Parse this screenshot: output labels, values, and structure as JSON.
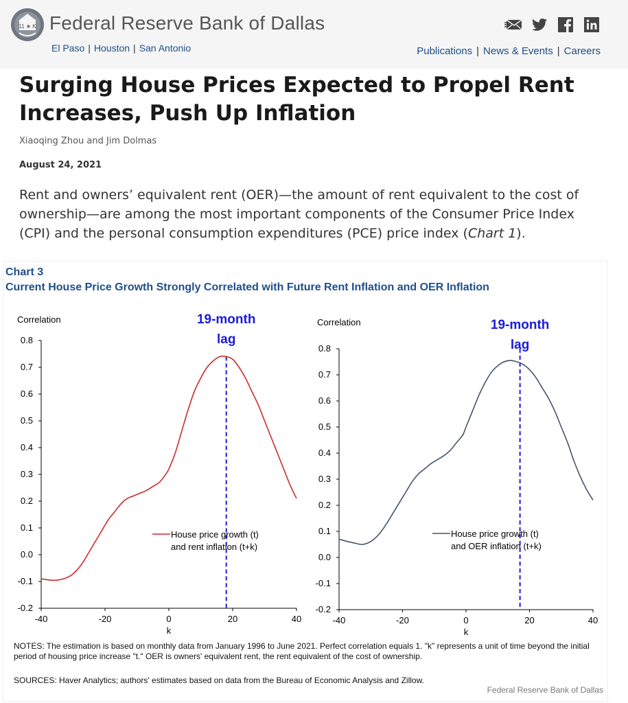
{
  "header": {
    "bank_name": "Federal Reserve Bank of Dallas",
    "cities": [
      "El Paso",
      "Houston",
      "San Antonio"
    ],
    "nav": [
      "Publications",
      "News & Events",
      "Careers"
    ],
    "social_icons": [
      "email-icon",
      "twitter-icon",
      "facebook-icon",
      "linkedin-icon"
    ],
    "seal_text": "11 ★ K"
  },
  "article": {
    "title": "Surging House Prices Expected to Propel Rent Increases, Push Up Inflation",
    "authors": "Xiaoqing Zhou and Jim Dolmas",
    "date": "August 24, 2021",
    "lead_before": "Rent and owners’ equivalent rent (OER)—the amount of rent equivalent to the cost of ownership—are among the most important components of the Consumer Price Index (CPI) and the personal consumption expenditures (PCE) price index (",
    "lead_link": "Chart 1",
    "lead_after": ")."
  },
  "chart_section": {
    "label": "Chart 3",
    "title": "Current House Price Growth Strongly  Correlated with Future Rent Inflation and OER Inflation",
    "notes": "NOTES: The estimation is based on monthly data from January 1996 to June 2021. Perfect correlation equals 1. \"k\" represents a unit of time beyond the initial period of housing price increase \"t.\" OER is owners' equivalent rent, the rent equivalent of the cost of ownership.",
    "sources": "SOURCES: Haver Analytics; authors' estimates based on data from the Bureau of Economic Analysis and Zillow.",
    "credit": "Federal Reserve  Bank of Dallas"
  },
  "chart_data": [
    {
      "type": "line",
      "ylabel": "Correlation",
      "xlabel": "k",
      "xlim": [
        -40,
        40
      ],
      "ylim": [
        -0.2,
        0.8
      ],
      "xticks": [
        -40,
        -20,
        0,
        20,
        40
      ],
      "yticks": [
        0.8,
        0.7,
        0.6,
        0.5,
        0.4,
        0.3,
        0.2,
        0.1,
        0.0,
        -0.1,
        -0.2
      ],
      "ytick_labels": [
        "0.8",
        "0.7",
        "0.6",
        "0.5",
        "0.4",
        "0.3",
        "0.2",
        "0.1",
        "0.0",
        "-0.1",
        "-0.2"
      ],
      "annotation": {
        "line1": "19-month",
        "line2": "lag",
        "k": 18
      },
      "series": [
        {
          "name_line1": "House price growth (t)",
          "name_line2": "and rent inflation (t+k)",
          "color": "#d0282b",
          "x": [
            -40,
            -37,
            -35,
            -33,
            -31,
            -29,
            -27,
            -25,
            -23,
            -21,
            -19,
            -17,
            -15,
            -13,
            -11,
            -9,
            -7,
            -5,
            -3,
            -1,
            0,
            2,
            4,
            6,
            8,
            10,
            12,
            14,
            16,
            18,
            20,
            22,
            24,
            26,
            28,
            30,
            32,
            34,
            36,
            38,
            40
          ],
          "y": [
            -0.09,
            -0.095,
            -0.095,
            -0.09,
            -0.08,
            -0.06,
            -0.03,
            0.01,
            0.05,
            0.09,
            0.13,
            0.16,
            0.19,
            0.21,
            0.22,
            0.23,
            0.24,
            0.255,
            0.27,
            0.3,
            0.32,
            0.38,
            0.46,
            0.54,
            0.61,
            0.66,
            0.7,
            0.725,
            0.74,
            0.74,
            0.73,
            0.7,
            0.66,
            0.61,
            0.56,
            0.5,
            0.44,
            0.38,
            0.32,
            0.26,
            0.21
          ]
        }
      ]
    },
    {
      "type": "line",
      "ylabel": "Correlation",
      "xlabel": "k",
      "xlim": [
        -40,
        40
      ],
      "ylim": [
        -0.2,
        0.8
      ],
      "xticks": [
        -40,
        -20,
        0,
        20,
        40
      ],
      "yticks": [
        0.8,
        0.7,
        0.6,
        0.5,
        0.4,
        0.3,
        0.2,
        0.1,
        0.0,
        -0.1,
        -0.2
      ],
      "ytick_labels": [
        "0.8",
        "0.7",
        "0.6",
        "0.5",
        "0.4",
        "0.3",
        "0.2",
        "0.1",
        "0.0",
        "-0.1",
        "-0.2"
      ],
      "annotation": {
        "line1": "19-month",
        "line2": "lag",
        "k": 17
      },
      "series": [
        {
          "name_line1": "House price growth (t)",
          "name_line2": "and OER inflation (t+k)",
          "color": "#44546a",
          "x": [
            -40,
            -37,
            -35,
            -33,
            -31,
            -29,
            -27,
            -25,
            -23,
            -21,
            -19,
            -17,
            -15,
            -13,
            -11,
            -9,
            -7,
            -5,
            -3,
            -1,
            0,
            2,
            4,
            6,
            8,
            10,
            12,
            14,
            16,
            18,
            20,
            22,
            24,
            26,
            28,
            30,
            32,
            34,
            36,
            38,
            40
          ],
          "y": [
            0.07,
            0.06,
            0.055,
            0.05,
            0.055,
            0.07,
            0.095,
            0.13,
            0.17,
            0.21,
            0.25,
            0.29,
            0.32,
            0.34,
            0.36,
            0.375,
            0.39,
            0.41,
            0.44,
            0.47,
            0.5,
            0.56,
            0.62,
            0.67,
            0.71,
            0.735,
            0.75,
            0.755,
            0.75,
            0.74,
            0.72,
            0.69,
            0.65,
            0.61,
            0.56,
            0.5,
            0.44,
            0.37,
            0.31,
            0.26,
            0.22
          ]
        }
      ]
    }
  ]
}
